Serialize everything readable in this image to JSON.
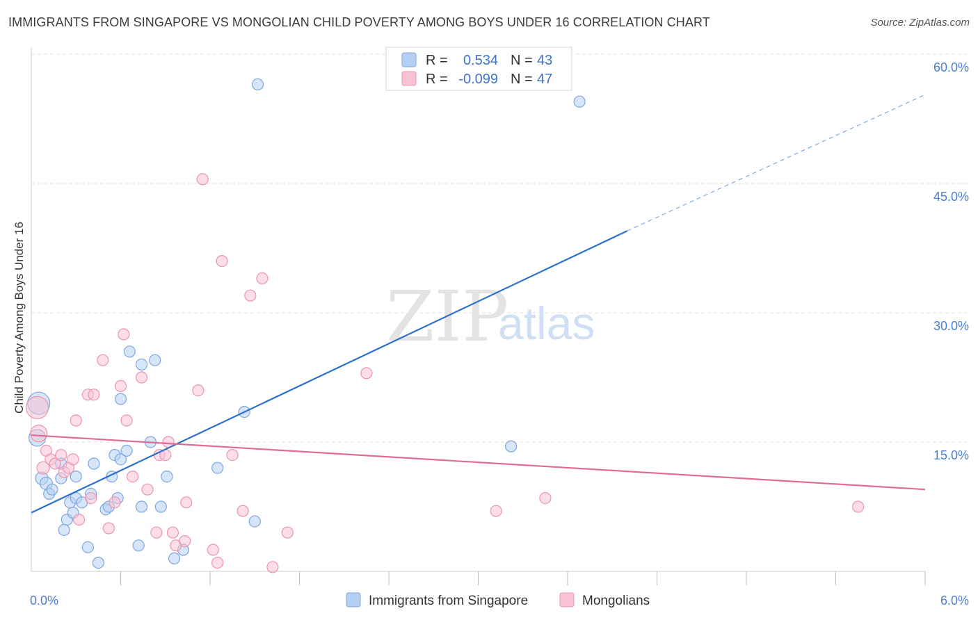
{
  "title": "IMMIGRANTS FROM SINGAPORE VS MONGOLIAN CHILD POVERTY AMONG BOYS UNDER 16 CORRELATION CHART",
  "source": "Source: ZipAtlas.com",
  "watermark": {
    "zip": "ZIP",
    "atlas": "atlas"
  },
  "colors": {
    "blue_fill": "#b5cff2",
    "blue_stroke": "#7ea6df",
    "blue_line": "#2b6fce",
    "pink_fill": "#f7c3d3",
    "pink_stroke": "#ee93b0",
    "pink_line": "#e06b95",
    "grid": "#e2e2e2",
    "axis_text": "#4a7fd0"
  },
  "legend": {
    "rows": [
      {
        "r_label": "R =",
        "r_value": "0.534",
        "n_label": "N =",
        "n_value": "43"
      },
      {
        "r_label": "R =",
        "r_value": "-0.099",
        "n_label": "N =",
        "n_value": "47"
      }
    ]
  },
  "bottom_legend": [
    "Immigrants from Singapore",
    "Mongolians"
  ],
  "chart_data": {
    "type": "scatter",
    "title": "IMMIGRANTS FROM SINGAPORE VS MONGOLIAN CHILD POVERTY AMONG BOYS UNDER 16 CORRELATION CHART",
    "xlabel": "",
    "ylabel": "Child Poverty Among Boys Under 16",
    "xlim": [
      0,
      6.0
    ],
    "ylim": [
      0,
      60
    ],
    "y_ticks": [
      {
        "value": 15,
        "label": "15.0%"
      },
      {
        "value": 30,
        "label": "30.0%"
      },
      {
        "value": 45,
        "label": "45.0%"
      },
      {
        "value": 60,
        "label": "60.0%"
      }
    ],
    "x_tick_labels": [
      {
        "value": 0,
        "label": "0.0%"
      },
      {
        "value": 6.0,
        "label": "6.0%"
      }
    ],
    "x_minor_ticks": [
      0.6,
      1.2,
      1.8,
      2.4,
      3.0,
      3.6,
      4.2,
      4.8,
      5.4,
      6.0
    ],
    "series": [
      {
        "name": "Immigrants from Singapore",
        "color": "blue",
        "r": 0.534,
        "n": 43,
        "trend": {
          "x_start": 0,
          "y_start": 6.8,
          "x_end": 4.0,
          "y_end": 39.5,
          "dash_to_x": 6.0,
          "dash_to_y": 55.3
        },
        "points": [
          [
            0.05,
            19.5,
            16
          ],
          [
            0.04,
            15.5,
            12
          ],
          [
            0.07,
            10.8,
            9
          ],
          [
            0.1,
            10.2,
            9
          ],
          [
            0.12,
            9.0,
            8
          ],
          [
            0.14,
            9.5,
            8
          ],
          [
            0.2,
            10.8,
            8
          ],
          [
            0.22,
            4.8,
            8
          ],
          [
            0.24,
            6.0,
            8
          ],
          [
            0.26,
            8.0,
            8
          ],
          [
            0.28,
            6.8,
            8
          ],
          [
            0.3,
            8.5,
            8
          ],
          [
            0.34,
            8.0,
            8
          ],
          [
            0.38,
            2.8,
            8
          ],
          [
            0.42,
            12.5,
            8
          ],
          [
            0.45,
            1.0,
            8
          ],
          [
            0.5,
            7.2,
            8
          ],
          [
            0.52,
            7.5,
            8
          ],
          [
            0.54,
            11.0,
            8
          ],
          [
            0.56,
            13.5,
            8
          ],
          [
            0.6,
            20.0,
            8
          ],
          [
            0.6,
            13.0,
            8
          ],
          [
            0.64,
            14.0,
            8
          ],
          [
            0.66,
            25.5,
            8
          ],
          [
            0.74,
            24.0,
            8
          ],
          [
            0.74,
            7.5,
            8
          ],
          [
            0.72,
            3.0,
            8
          ],
          [
            0.8,
            15.0,
            8
          ],
          [
            0.83,
            24.5,
            8
          ],
          [
            0.87,
            7.5,
            8
          ],
          [
            0.91,
            11.0,
            8
          ],
          [
            0.96,
            1.5,
            8
          ],
          [
            1.02,
            2.5,
            8
          ],
          [
            1.25,
            12.0,
            8
          ],
          [
            1.43,
            18.5,
            8
          ],
          [
            1.5,
            5.8,
            8
          ],
          [
            1.52,
            56.5,
            8
          ],
          [
            3.22,
            14.5,
            8
          ],
          [
            3.68,
            54.5,
            8
          ],
          [
            0.2,
            12.5,
            8
          ],
          [
            0.3,
            11.0,
            8
          ],
          [
            0.4,
            9.0,
            8
          ],
          [
            0.58,
            8.5,
            8
          ]
        ]
      },
      {
        "name": "Mongolians",
        "color": "pink",
        "r": -0.099,
        "n": 47,
        "trend": {
          "x_start": 0,
          "y_start": 15.8,
          "x_end": 6.0,
          "y_end": 9.5
        },
        "points": [
          [
            0.04,
            19.0,
            16
          ],
          [
            0.05,
            16.0,
            12
          ],
          [
            0.08,
            12.0,
            9
          ],
          [
            0.1,
            14.0,
            8
          ],
          [
            0.13,
            13.0,
            8
          ],
          [
            0.16,
            12.5,
            8
          ],
          [
            0.2,
            13.5,
            8
          ],
          [
            0.22,
            11.5,
            8
          ],
          [
            0.25,
            12.0,
            8
          ],
          [
            0.28,
            13.0,
            8
          ],
          [
            0.3,
            17.5,
            8
          ],
          [
            0.32,
            6.0,
            8
          ],
          [
            0.38,
            20.5,
            8
          ],
          [
            0.4,
            8.5,
            8
          ],
          [
            0.42,
            20.5,
            8
          ],
          [
            0.48,
            24.5,
            8
          ],
          [
            0.52,
            5.0,
            8
          ],
          [
            0.56,
            8.0,
            8
          ],
          [
            0.6,
            21.5,
            8
          ],
          [
            0.62,
            27.5,
            8
          ],
          [
            0.64,
            17.5,
            8
          ],
          [
            0.68,
            11.0,
            8
          ],
          [
            0.74,
            22.5,
            8
          ],
          [
            0.78,
            9.5,
            8
          ],
          [
            0.84,
            4.5,
            8
          ],
          [
            0.86,
            13.5,
            8
          ],
          [
            0.9,
            13.5,
            8
          ],
          [
            0.92,
            15.0,
            8
          ],
          [
            0.95,
            4.5,
            8
          ],
          [
            0.97,
            3.0,
            8
          ],
          [
            1.03,
            3.5,
            8
          ],
          [
            1.04,
            8.0,
            8
          ],
          [
            1.12,
            21.0,
            8
          ],
          [
            1.15,
            45.5,
            8
          ],
          [
            1.22,
            2.5,
            8
          ],
          [
            1.25,
            1.0,
            8
          ],
          [
            1.28,
            36.0,
            8
          ],
          [
            1.35,
            13.5,
            8
          ],
          [
            1.42,
            7.0,
            8
          ],
          [
            1.47,
            32.0,
            8
          ],
          [
            1.55,
            34.0,
            8
          ],
          [
            1.62,
            0.5,
            8
          ],
          [
            1.72,
            4.5,
            8
          ],
          [
            2.25,
            23.0,
            8
          ],
          [
            3.12,
            7.0,
            8
          ],
          [
            3.45,
            8.5,
            8
          ],
          [
            5.55,
            7.5,
            8
          ]
        ]
      }
    ]
  }
}
